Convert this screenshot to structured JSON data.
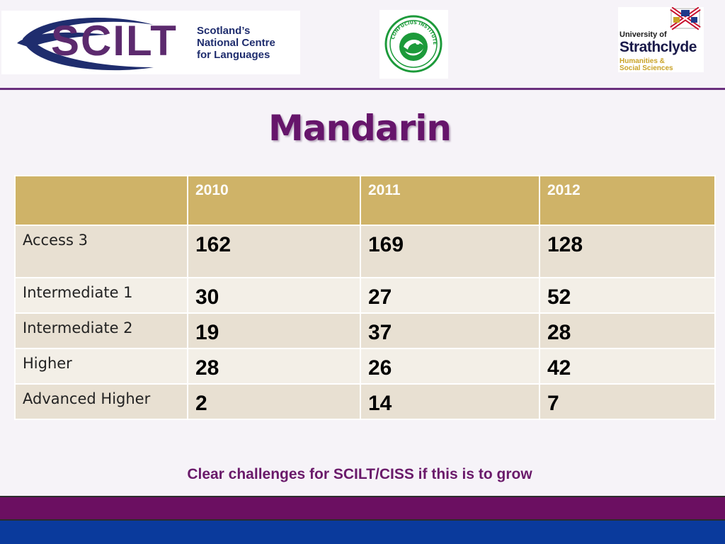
{
  "logos": {
    "scilt": {
      "wordmark": "SCILT",
      "subtitle_lines": [
        "Scotland’s",
        "National Centre",
        "for Languages"
      ]
    },
    "confucius": {
      "ring_text": "CONFUCIUS INSTITUTE"
    },
    "strathclyde": {
      "line1": "University of",
      "line2": "Strathclyde",
      "faculty_lines": [
        "Humanities &",
        "Social Sciences"
      ]
    }
  },
  "title": "Mandarin",
  "table": {
    "headers": [
      "",
      "2010",
      "2011",
      "2012"
    ],
    "rows": [
      {
        "label": "Access 3",
        "values": [
          "162",
          "169",
          "128"
        ]
      },
      {
        "label": "Intermediate 1",
        "values": [
          "30",
          "27",
          "52"
        ]
      },
      {
        "label": "Intermediate 2",
        "values": [
          "19",
          "37",
          "28"
        ]
      },
      {
        "label": "Higher",
        "values": [
          "28",
          "26",
          "42"
        ]
      },
      {
        "label": "Advanced Higher",
        "values": [
          "2",
          "14",
          "7"
        ]
      }
    ]
  },
  "caption": "Clear challenges for SCILT/CISS if this is to grow",
  "colors": {
    "title": "#66156b",
    "header_bg": "#cfb368",
    "row_odd": "#e8e0d2",
    "row_even": "#f3efe7",
    "band_purple": "#6b0f61",
    "band_blue": "#0a3a9c"
  }
}
